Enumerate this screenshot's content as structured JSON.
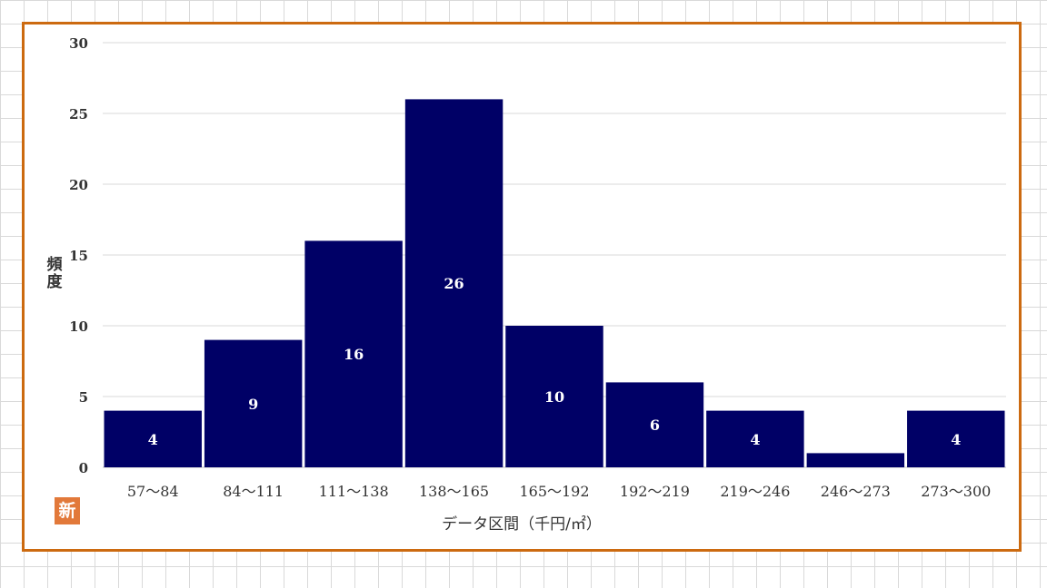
{
  "chart_data": {
    "type": "bar",
    "title": "",
    "xlabel": "データ区間（千円/㎡）",
    "ylabel": "頻度",
    "categories": [
      "57～84",
      "84～111",
      "111～138",
      "138～165",
      "165～192",
      "192～219",
      "219～246",
      "246～273",
      "273～300"
    ],
    "values": [
      4,
      9,
      16,
      26,
      10,
      6,
      4,
      1,
      4
    ],
    "data_labels": [
      "4",
      "9",
      "16",
      "26",
      "10",
      "6",
      "4",
      "",
      "4"
    ],
    "ylim": [
      0,
      30
    ],
    "yticks": [
      0,
      5,
      10,
      15,
      20,
      25,
      30
    ],
    "grid": true,
    "legend": "none",
    "bar_color": "#000066",
    "frame_color": "#cc6a10"
  },
  "logo": {
    "text": "新",
    "color": "#e2793a"
  }
}
